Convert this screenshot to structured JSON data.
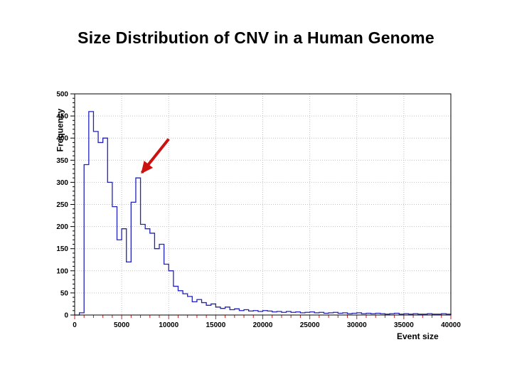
{
  "slide": {
    "title": "Size Distribution of CNV in a Human Genome"
  },
  "chart_data": {
    "type": "bar",
    "subtype": "step-histogram",
    "title": "Size Distribution of CNV in a Human Genome",
    "xlabel": "Event size",
    "ylabel": "Frequency",
    "xlim": [
      0,
      40000
    ],
    "ylim": [
      0,
      500
    ],
    "x_major_ticks": [
      0,
      5000,
      10000,
      15000,
      20000,
      25000,
      30000,
      35000,
      40000
    ],
    "y_major_ticks": [
      0,
      50,
      100,
      150,
      200,
      250,
      300,
      350,
      400,
      450,
      500
    ],
    "x_minor_step": 1000,
    "y_minor_step": 10,
    "grid": true,
    "legend": "none",
    "bin_start": 0,
    "bin_width": 500,
    "values": [
      0,
      5,
      340,
      460,
      415,
      390,
      400,
      300,
      245,
      170,
      195,
      120,
      255,
      310,
      205,
      195,
      185,
      150,
      160,
      115,
      100,
      65,
      55,
      48,
      42,
      30,
      35,
      28,
      22,
      25,
      18,
      15,
      18,
      12,
      14,
      10,
      12,
      9,
      10,
      8,
      10,
      9,
      7,
      8,
      6,
      8,
      6,
      7,
      5,
      6,
      7,
      5,
      6,
      4,
      5,
      6,
      4,
      5,
      3,
      4,
      5,
      3,
      4,
      3,
      4,
      3,
      2,
      3,
      4,
      2,
      3,
      2,
      3,
      2,
      2,
      3,
      2,
      2,
      3,
      2
    ],
    "colors": {
      "line": "#2222bb",
      "grid": "#c0c0c0",
      "frame": "#000000",
      "x_tick": "#cc2222",
      "y_tick": "#000000",
      "arrow": "#cc1111"
    },
    "annotation": {
      "type": "arrow",
      "tail": {
        "x": 10000,
        "y": 398
      },
      "head": {
        "x": 7150,
        "y": 322
      }
    }
  }
}
